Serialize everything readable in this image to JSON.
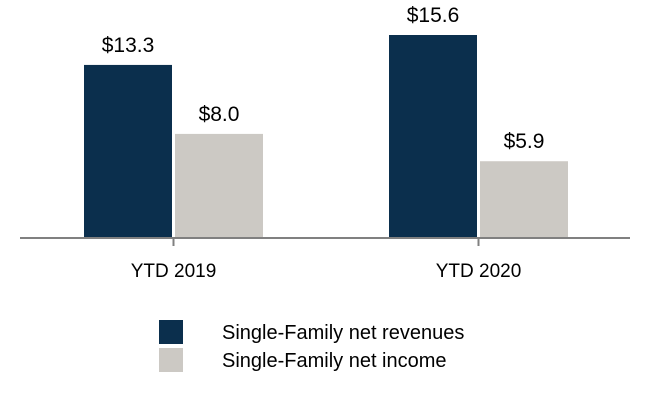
{
  "chart_data": {
    "type": "bar",
    "categories": [
      "YTD 2019",
      "YTD 2020"
    ],
    "series": [
      {
        "name": "Single-Family net revenues",
        "values": [
          13.3,
          15.6
        ],
        "labels": [
          "$13.3",
          "$15.6"
        ],
        "color": "#0b2f4d"
      },
      {
        "name": "Single-Family net income",
        "values": [
          8.0,
          5.9
        ],
        "labels": [
          "$8.0",
          "$5.9"
        ],
        "color": "#ccc9c4"
      }
    ],
    "ylim": [
      0,
      15.6
    ],
    "grid": false,
    "legend_position": "bottom",
    "axis_color": "#808080"
  }
}
